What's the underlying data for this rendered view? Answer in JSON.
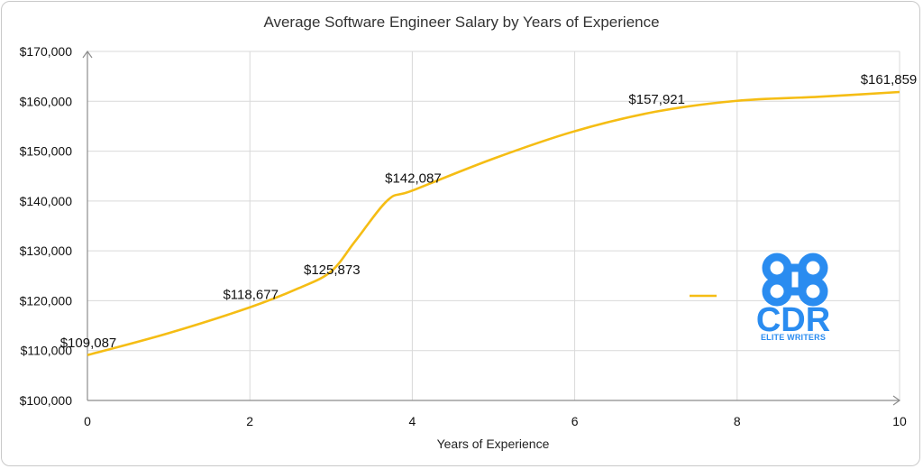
{
  "chart_data": {
    "type": "line",
    "title": "Average Software Engineer Salary by Years of Experience",
    "xlabel": "Years of Experience",
    "ylabel": "",
    "xlim": [
      0,
      10
    ],
    "ylim": [
      100000,
      170000
    ],
    "x_ticks": [
      0,
      2,
      4,
      6,
      8,
      10
    ],
    "y_ticks": [
      100000,
      110000,
      120000,
      130000,
      140000,
      150000,
      160000,
      170000
    ],
    "y_tick_labels": [
      "$100,000",
      "$110,000",
      "$120,000",
      "$130,000",
      "$140,000",
      "$150,000",
      "$160,000",
      "$170,000"
    ],
    "grid": true,
    "legend": "right",
    "series": [
      {
        "color": "#f5bd14",
        "smooth": true,
        "x": [
          0,
          1,
          2,
          2.6,
          3,
          3.3,
          3.7,
          4,
          5,
          6,
          7,
          8,
          9,
          10
        ],
        "y": [
          109087,
          113500,
          118677,
          122500,
          125873,
          132000,
          140200,
          142087,
          148500,
          154000,
          157921,
          160100,
          160900,
          161859
        ]
      }
    ],
    "data_labels": [
      {
        "x": 0,
        "y": 109087,
        "text": "$109,087"
      },
      {
        "x": 2,
        "y": 118677,
        "text": "$118,677"
      },
      {
        "x": 3,
        "y": 125873,
        "text": "$125,873"
      },
      {
        "x": 4,
        "y": 142087,
        "text": "$142,087"
      },
      {
        "x": 7,
        "y": 157921,
        "text": "$157,921"
      },
      {
        "x": 10,
        "y": 161859,
        "text": "$161,859"
      }
    ]
  },
  "logo": {
    "name": "CDR",
    "tagline": "ELITE WRITERS",
    "color": "#2a8cf0"
  }
}
